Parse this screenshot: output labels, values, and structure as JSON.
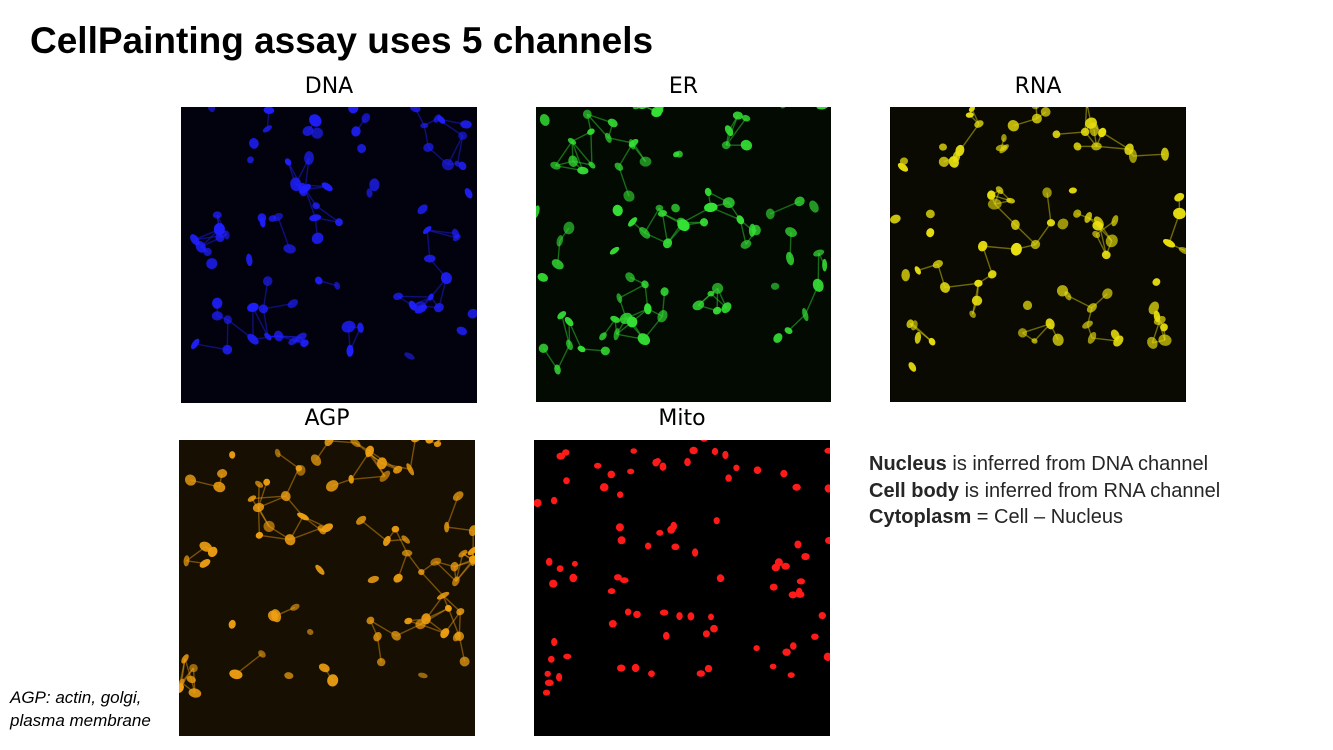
{
  "slide": {
    "title": "CellPainting assay uses 5 channels"
  },
  "panels": [
    {
      "key": "dna",
      "label": "DNA",
      "color": "#1f1fff",
      "pattern": "cells",
      "background": "#02020f"
    },
    {
      "key": "er",
      "label": "ER",
      "color": "#35e035",
      "pattern": "cells",
      "background": "#020a02"
    },
    {
      "key": "rna",
      "label": "RNA",
      "color": "#e8df10",
      "pattern": "cells",
      "background": "#0b0a02"
    },
    {
      "key": "agp",
      "label": "AGP",
      "color": "#f0a012",
      "pattern": "cells",
      "background": "#170f02"
    },
    {
      "key": "mito",
      "label": "Mito",
      "color": "#ff1a1a",
      "pattern": "nuclei",
      "background": "#000000"
    }
  ],
  "legend": {
    "lines": [
      {
        "bold": "Nucleus",
        "rest": " is inferred from DNA channel"
      },
      {
        "bold": "Cell body",
        "rest": " is inferred from RNA channel"
      },
      {
        "bold": "Cytoplasm",
        "rest": " = Cell – Nucleus"
      }
    ]
  },
  "footnote": {
    "line1": "AGP: actin, golgi,",
    "line2": "plasma membrane"
  }
}
